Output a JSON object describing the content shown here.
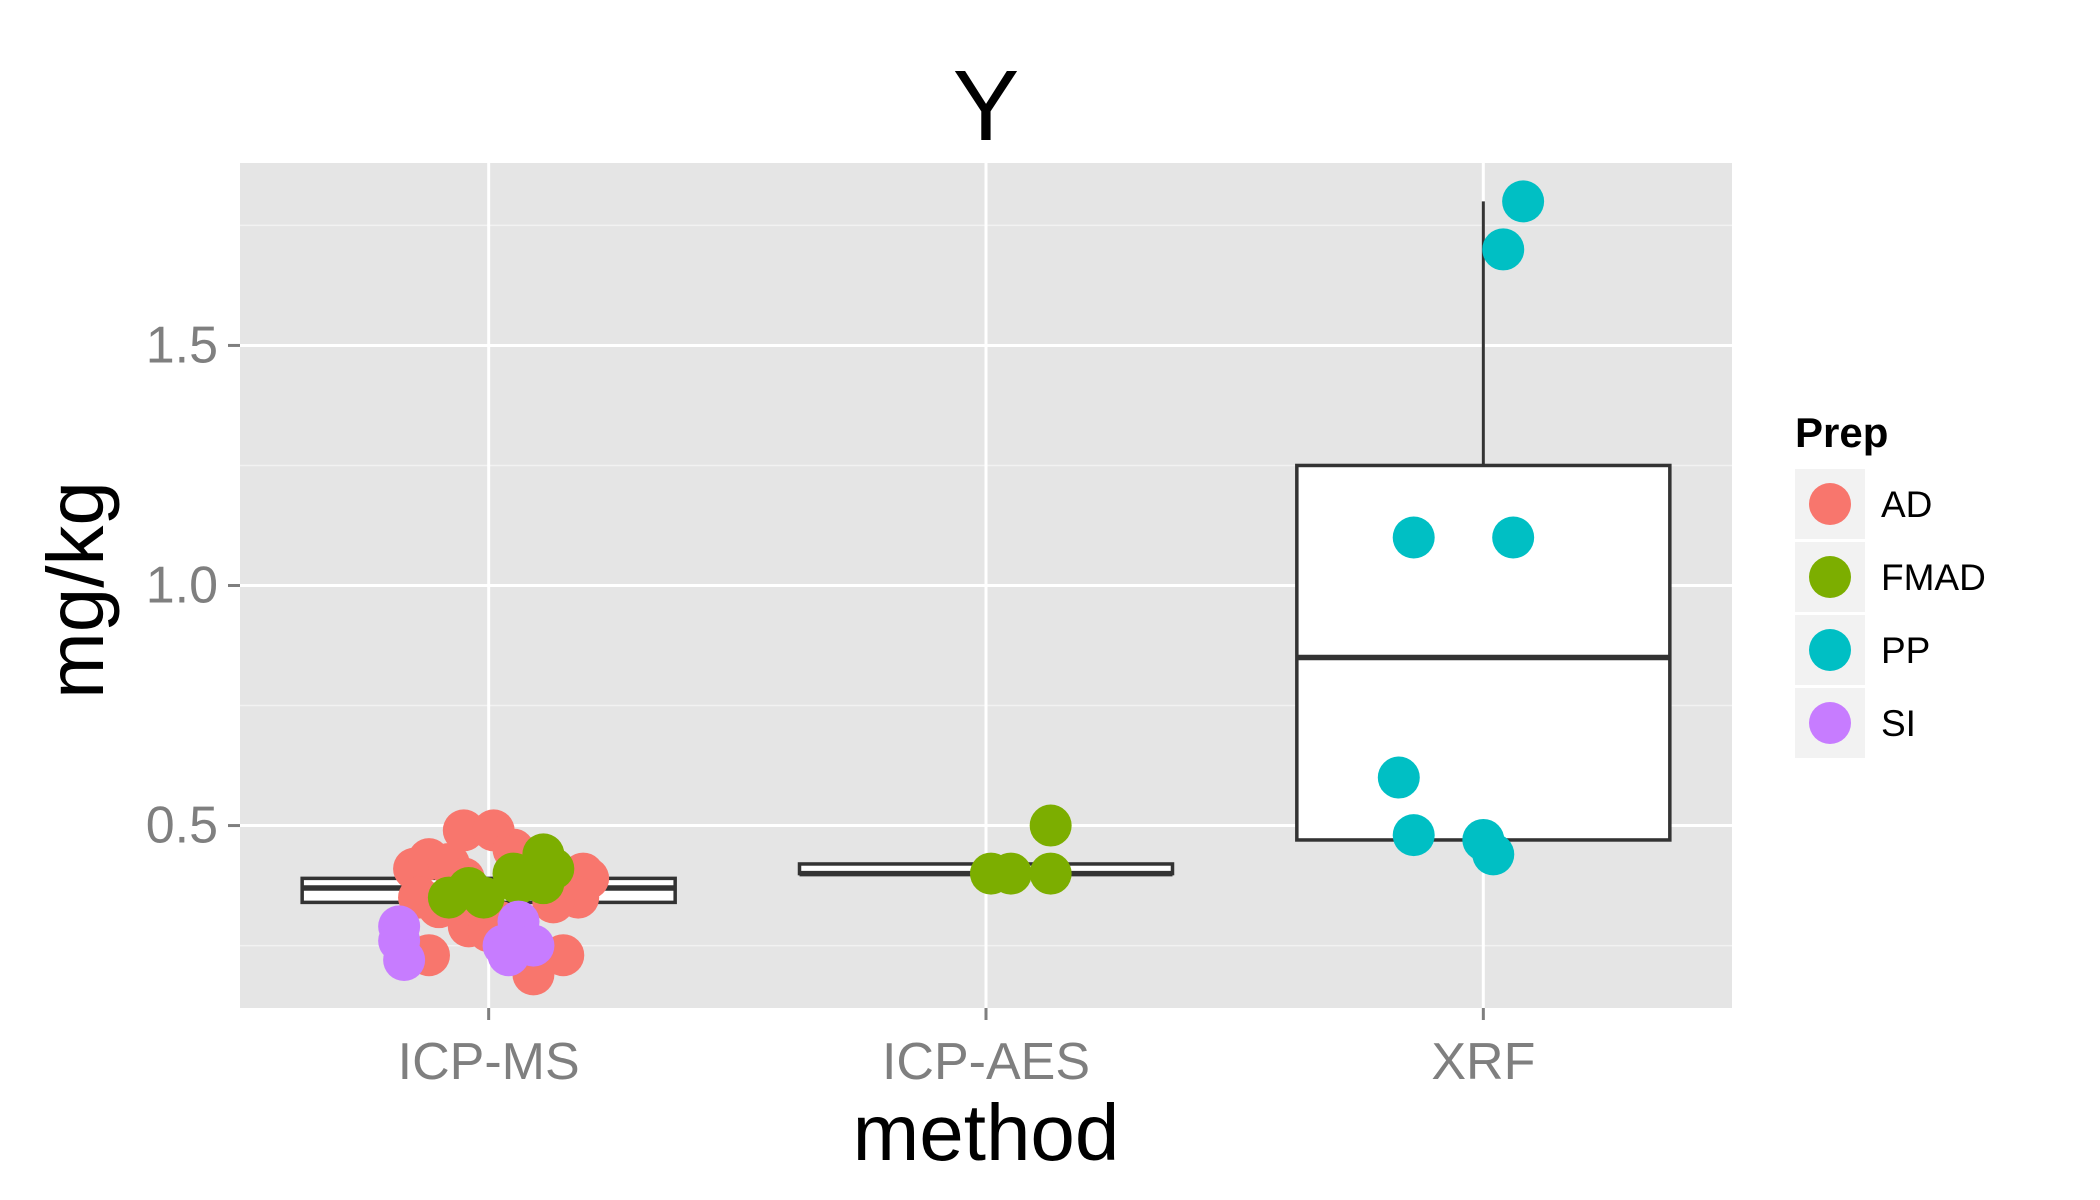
{
  "chart_data": {
    "type": "boxplot",
    "title": "Y",
    "xlabel": "method",
    "ylabel": "mg/kg",
    "categories": [
      "ICP-MS",
      "ICP-AES",
      "XRF"
    ],
    "ylim": [
      0.12,
      1.88
    ],
    "y_ticks": [
      0.5,
      1.0,
      1.5
    ],
    "y_tick_labels": [
      "0.5",
      "1.0",
      "1.5"
    ],
    "grid": true,
    "legend": {
      "title": "Prep",
      "position": "right",
      "entries": [
        {
          "label": "AD",
          "color": "#f8766d"
        },
        {
          "label": "FMAD",
          "color": "#7cae00"
        },
        {
          "label": "PP",
          "color": "#00bfc4"
        },
        {
          "label": "SI",
          "color": "#c77cff"
        }
      ]
    },
    "boxes": [
      {
        "category": "ICP-MS",
        "q1": 0.34,
        "median": 0.37,
        "q3": 0.39,
        "whisker_low": 0.34,
        "whisker_high": 0.39
      },
      {
        "category": "ICP-AES",
        "q1": 0.4,
        "median": 0.4,
        "q3": 0.42,
        "whisker_low": 0.4,
        "whisker_high": 0.42
      },
      {
        "category": "XRF",
        "q1": 0.47,
        "median": 0.85,
        "q3": 1.25,
        "whisker_low": 0.47,
        "whisker_high": 1.8
      }
    ],
    "series": [
      {
        "name": "AD",
        "color": "#f8766d",
        "points": [
          {
            "x": "ICP-MS",
            "jitter": -0.15,
            "y": 0.41
          },
          {
            "x": "ICP-MS",
            "jitter": -0.12,
            "y": 0.43
          },
          {
            "x": "ICP-MS",
            "jitter": -0.08,
            "y": 0.42
          },
          {
            "x": "ICP-MS",
            "jitter": -0.05,
            "y": 0.39
          },
          {
            "x": "ICP-MS",
            "jitter": -0.05,
            "y": 0.49
          },
          {
            "x": "ICP-MS",
            "jitter": 0.01,
            "y": 0.49
          },
          {
            "x": "ICP-MS",
            "jitter": 0.05,
            "y": 0.45
          },
          {
            "x": "ICP-MS",
            "jitter": 0.06,
            "y": 0.44
          },
          {
            "x": "ICP-MS",
            "jitter": 0.19,
            "y": 0.4
          },
          {
            "x": "ICP-MS",
            "jitter": 0.2,
            "y": 0.39
          },
          {
            "x": "ICP-MS",
            "jitter": 0.18,
            "y": 0.35
          },
          {
            "x": "ICP-MS",
            "jitter": 0.13,
            "y": 0.34
          },
          {
            "x": "ICP-MS",
            "jitter": -0.14,
            "y": 0.35
          },
          {
            "x": "ICP-MS",
            "jitter": -0.1,
            "y": 0.33
          },
          {
            "x": "ICP-MS",
            "jitter": -0.03,
            "y": 0.32
          },
          {
            "x": "ICP-MS",
            "jitter": -0.04,
            "y": 0.29
          },
          {
            "x": "ICP-MS",
            "jitter": 0.0,
            "y": 0.28
          },
          {
            "x": "ICP-MS",
            "jitter": 0.02,
            "y": 0.3
          },
          {
            "x": "ICP-MS",
            "jitter": -0.12,
            "y": 0.23
          },
          {
            "x": "ICP-MS",
            "jitter": 0.1,
            "y": 0.22
          },
          {
            "x": "ICP-MS",
            "jitter": 0.15,
            "y": 0.23
          },
          {
            "x": "ICP-MS",
            "jitter": 0.09,
            "y": 0.19
          }
        ]
      },
      {
        "name": "FMAD",
        "color": "#7cae00",
        "points": [
          {
            "x": "ICP-MS",
            "jitter": -0.08,
            "y": 0.35
          },
          {
            "x": "ICP-MS",
            "jitter": -0.04,
            "y": 0.37
          },
          {
            "x": "ICP-MS",
            "jitter": -0.01,
            "y": 0.35
          },
          {
            "x": "ICP-MS",
            "jitter": 0.05,
            "y": 0.4
          },
          {
            "x": "ICP-MS",
            "jitter": 0.06,
            "y": 0.38
          },
          {
            "x": "ICP-MS",
            "jitter": 0.11,
            "y": 0.44
          },
          {
            "x": "ICP-MS",
            "jitter": 0.11,
            "y": 0.38
          },
          {
            "x": "ICP-MS",
            "jitter": 0.13,
            "y": 0.41
          },
          {
            "x": "ICP-AES",
            "jitter": 0.01,
            "y": 0.4
          },
          {
            "x": "ICP-AES",
            "jitter": 0.05,
            "y": 0.4
          },
          {
            "x": "ICP-AES",
            "jitter": 0.13,
            "y": 0.4
          },
          {
            "x": "ICP-AES",
            "jitter": 0.13,
            "y": 0.5
          }
        ]
      },
      {
        "name": "PP",
        "color": "#00bfc4",
        "points": [
          {
            "x": "XRF",
            "jitter": 0.08,
            "y": 1.8
          },
          {
            "x": "XRF",
            "jitter": 0.04,
            "y": 1.7
          },
          {
            "x": "XRF",
            "jitter": -0.14,
            "y": 1.1
          },
          {
            "x": "XRF",
            "jitter": 0.06,
            "y": 1.1
          },
          {
            "x": "XRF",
            "jitter": -0.17,
            "y": 0.6
          },
          {
            "x": "XRF",
            "jitter": -0.14,
            "y": 0.48
          },
          {
            "x": "XRF",
            "jitter": 0.0,
            "y": 0.47
          },
          {
            "x": "XRF",
            "jitter": 0.02,
            "y": 0.44
          }
        ]
      },
      {
        "name": "SI",
        "color": "#c77cff",
        "points": [
          {
            "x": "ICP-MS",
            "jitter": -0.18,
            "y": 0.29
          },
          {
            "x": "ICP-MS",
            "jitter": -0.18,
            "y": 0.26
          },
          {
            "x": "ICP-MS",
            "jitter": -0.17,
            "y": 0.22
          },
          {
            "x": "ICP-MS",
            "jitter": 0.03,
            "y": 0.25
          },
          {
            "x": "ICP-MS",
            "jitter": 0.04,
            "y": 0.23
          },
          {
            "x": "ICP-MS",
            "jitter": 0.06,
            "y": 0.3
          },
          {
            "x": "ICP-MS",
            "jitter": 0.09,
            "y": 0.25
          }
        ]
      }
    ]
  }
}
